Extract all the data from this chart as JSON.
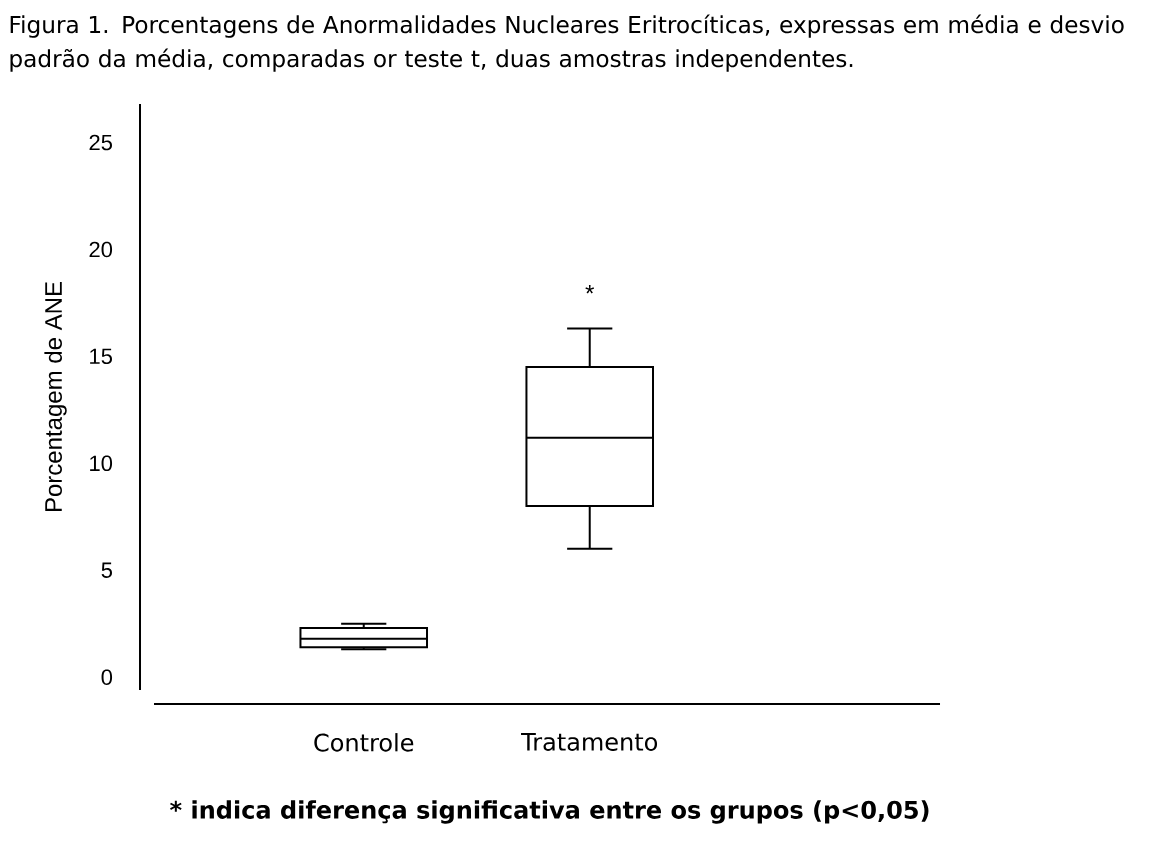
{
  "chart_data": {
    "type": "box",
    "title": "Figura 1. Porcentagens de Anormalidades Nucleares Eritrocíticas, expressas em média e desvio padrão da média, comparadas or teste t, duas amostras independentes.",
    "ylabel": "Porcentagem de ANE",
    "categories": [
      "Controle",
      "Tratamento"
    ],
    "boxes": [
      {
        "low": 1.3,
        "q1": 1.4,
        "median": 1.8,
        "q3": 2.3,
        "high": 2.5
      },
      {
        "low": 6.0,
        "q1": 8.0,
        "median": 11.2,
        "q3": 14.5,
        "high": 16.3
      }
    ],
    "ylim": [
      -0.6,
      26.8
    ],
    "yticks": [
      0,
      5,
      10,
      15,
      20,
      25
    ],
    "annotations": [
      "*",
      "* indica diferença significativa entre os grupos (p<0,05)"
    ]
  }
}
